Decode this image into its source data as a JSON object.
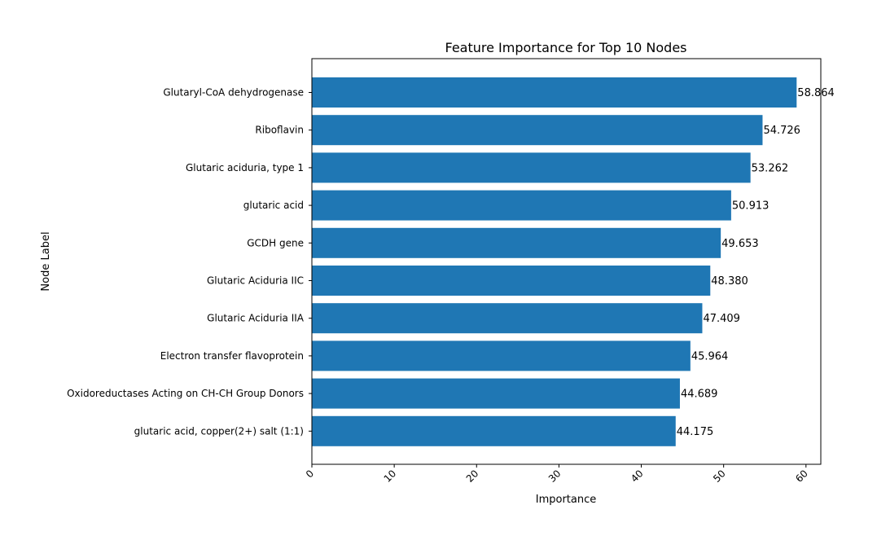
{
  "chart_data": {
    "type": "bar",
    "orientation": "horizontal",
    "title": "Feature Importance for Top 10 Nodes",
    "xlabel": "Importance",
    "ylabel": "Node Label",
    "xlim": [
      0,
      61.8
    ],
    "xticks": [
      0,
      10,
      20,
      30,
      40,
      50,
      60
    ],
    "grid": false,
    "legend": "none",
    "bar_color": "#1f77b4",
    "categories": [
      "Glutaryl-CoA dehydrogenase",
      "Riboflavin",
      "Glutaric aciduria, type 1",
      "glutaric acid",
      "GCDH gene",
      "Glutaric Aciduria IIC",
      "Glutaric Aciduria IIA",
      "Electron transfer flavoprotein",
      "Oxidoreductases Acting on CH-CH Group Donors",
      "glutaric acid, copper(2+) salt (1:1)"
    ],
    "values": [
      58.864,
      54.726,
      53.262,
      50.913,
      49.653,
      48.38,
      47.409,
      45.964,
      44.689,
      44.175
    ],
    "value_labels": [
      "58.864",
      "54.726",
      "53.262",
      "50.913",
      "49.653",
      "48.380",
      "47.409",
      "45.964",
      "44.689",
      "44.175"
    ]
  }
}
